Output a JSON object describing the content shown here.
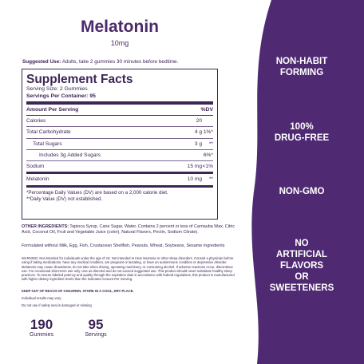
{
  "product": {
    "name": "Melatonin",
    "dose": "10mg"
  },
  "suggested_use": {
    "label": "Suggested Use:",
    "text": " Adults, take 2 gummies 30 minutes before bedtime."
  },
  "facts": {
    "title": "Supplement Facts",
    "serving_size": "Serving Size: 2 Gummies",
    "servings_per_container": "Servings Per Container: 95",
    "header_left": "Amount Per Serving",
    "header_right": "%DV",
    "rows": [
      {
        "name": "Calories",
        "amount": "20",
        "dv": ""
      },
      {
        "name": "Total Carbohydrate",
        "amount": "4 g",
        "dv": "1%*"
      },
      {
        "name": "Total Sugars",
        "amount": "3 g",
        "dv": "**"
      },
      {
        "name": "Includes 3g Added Sugars",
        "amount": "",
        "dv": "6%*"
      },
      {
        "name": "Sodium",
        "amount": "15 mg",
        "dv": "<1%"
      },
      {
        "name": "Melatonin",
        "amount": "10 mg",
        "dv": "**"
      }
    ],
    "footnote1": "*Percentage Daily Values (DV) are based on a 2,000 calorie diet.",
    "footnote2": "**Daily Value (DV) not established."
  },
  "other_ingredients": {
    "label": "OTHER INGREDIENTS:",
    "text": " Tapioca Syrup, Cane Sugar, Water, Contains 2 percent or less of Carnauba Wax, Citric Acid, Coconut Oil, Fruit and Vegetable Juice (color), Natural Flavors, Pectin, Sodium Citrate)."
  },
  "allergen_text": "Formulated without Milk, Egg, Fish, Crustacean Shellfish, Peanuts, Wheat, Soybeans, Sesame Ingredients",
  "warning_text": "WARNING: Not intended for individuals under the age of 18. Not intended to treat insomnia or other sleep disorders. Consult a physician before using if taking medications, have any medical condition, are pregnant or lactating, or have an autoimmune condition or depressive disorder. Melatonin may cause drowsiness, do not take when driving, operating machinery, or consuming alcohol. If adverse reactions occur, discontinue use. For occasional short-term use only. Use as directed and do not exceed suggested use. This product should never substitute healthy sleep practices. To ensure labeled potency and quality through the expiration date in accordance with federal regulations, this product is manufactured with higher dietary ingredient levels than the indicated Amount Per Serving.",
  "keep_out": "KEEP OUT OF REACH OF CHILDREN. STORE IN A COOL, DRY PLACE.",
  "results_note": "Individual results may vary.",
  "seal_note": "Do not use if safety seal is damaged or missing.",
  "stats": [
    {
      "number": "190",
      "label": "Gummies"
    },
    {
      "number": "95",
      "label": "Servings"
    }
  ],
  "claims": [
    "NON-HABIT\nFORMING",
    "100%\nDRUG-FREE",
    "NON-GMO",
    "NO\nARTIFICIAL\nFLAVORS\nOR\nSWEETENERS"
  ],
  "colors": {
    "purple": "#4f2a72",
    "text": "#3d2556"
  }
}
